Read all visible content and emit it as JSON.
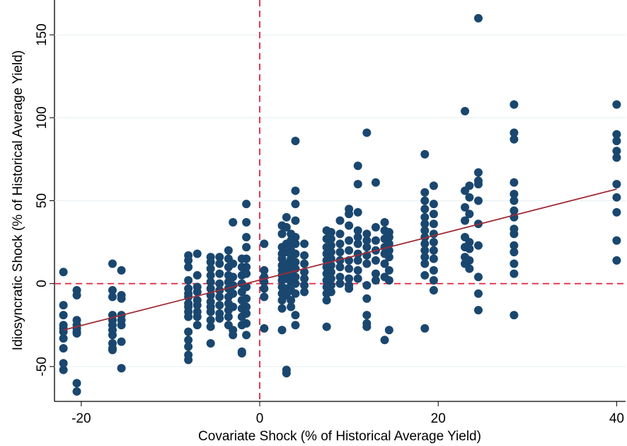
{
  "chart_data": {
    "type": "scatter",
    "x_label": "Covariate Shock (% of Historical Average Yield)",
    "y_label": "Idiosyncratic Shock (% of Historical Average Yield)",
    "xlim": [
      -23,
      41
    ],
    "ylim": [
      -71,
      171
    ],
    "xticks": [
      -20,
      0,
      20,
      40
    ],
    "yticks": [
      -50,
      0,
      50,
      100,
      150
    ],
    "grid": true,
    "reference_x": 0,
    "reference_y": 0,
    "reference_color": "#e3223c",
    "fit": {
      "color": "#a02b36",
      "x": [
        -22,
        40
      ],
      "y": [
        -28,
        57
      ]
    },
    "series": [
      {
        "color": "#1a476f",
        "x": [
          -22,
          -22,
          -22,
          -22,
          -22,
          -22,
          -22,
          -22,
          -22,
          -22,
          -20.5,
          -20.5,
          -20.5,
          -20.5,
          -20.5,
          -20.5,
          -20.5,
          -20.5,
          -20.5,
          -16.5,
          -16.5,
          -16.5,
          -16.5,
          -16.5,
          -16.5,
          -16.5,
          -16.5,
          -16.5,
          -16.5,
          -16.5,
          -15.5,
          -15.5,
          -15.5,
          -15.5,
          -15.5,
          -15.5,
          -15.5,
          -15.5,
          -8,
          -8,
          -8,
          -8,
          -8,
          -8,
          -8,
          -8,
          -8,
          -8,
          -8,
          -8,
          -8,
          -8,
          -8,
          -8,
          -7,
          -7,
          -7,
          -7,
          -7,
          -7,
          -7,
          -7,
          -7,
          -5.5,
          -5.5,
          -5.5,
          -5.5,
          -5.5,
          -5.5,
          -5.5,
          -5.5,
          -5.5,
          -5.5,
          -5.5,
          -5.5,
          -5.5,
          -4.5,
          -4.5,
          -4.5,
          -4.5,
          -4.5,
          -4.5,
          -4.5,
          -4.5,
          -4.5,
          -3.5,
          -3.5,
          -3.5,
          -3.5,
          -3.5,
          -3.5,
          -3.5,
          -3.5,
          -3.5,
          -3.5,
          -3.5,
          -3,
          -3,
          -3,
          -3,
          -3,
          -3,
          -3,
          -3,
          -2,
          -2,
          -2,
          -2,
          -2,
          -2,
          -2,
          -2,
          -2,
          -2,
          -2,
          -1.5,
          -1.5,
          -1.5,
          -1.5,
          -1.5,
          -1.5,
          -1.5,
          -1.5,
          -1.5,
          -1.5,
          -1.5,
          -1.5,
          -1.5,
          0.5,
          0.5,
          0.5,
          0.5,
          0.5,
          0.5,
          0.5,
          2.5,
          2.5,
          2.5,
          2.5,
          2.5,
          2.5,
          2.5,
          2.5,
          2.5,
          2.5,
          2.5,
          2.5,
          2.5,
          2.5,
          3,
          3,
          3,
          3,
          3,
          3,
          3,
          3,
          3,
          3,
          3,
          3.5,
          3.5,
          3.5,
          3.5,
          3.5,
          3.5,
          3.5,
          3.5,
          3.5,
          3.5,
          3.5,
          4,
          4,
          4,
          4,
          4,
          4,
          4,
          4,
          4,
          4,
          4,
          4,
          4,
          4,
          5,
          5,
          5,
          5,
          5,
          5,
          5,
          7.5,
          7.5,
          7.5,
          7.5,
          7.5,
          7.5,
          7.5,
          7.5,
          7.5,
          7.5,
          7.5,
          7.5,
          8,
          8,
          8,
          8,
          8,
          8,
          8,
          8,
          8,
          8,
          9,
          9,
          9,
          9,
          9,
          9,
          9,
          9,
          10,
          10,
          10,
          10,
          10,
          10,
          10,
          10,
          10,
          10,
          11,
          11,
          11,
          11,
          11,
          11,
          11,
          11,
          11,
          11,
          12,
          12,
          12,
          12,
          12,
          12,
          12,
          12,
          12,
          12,
          12,
          13,
          13,
          13,
          13,
          13,
          13,
          13,
          14,
          14,
          14,
          14,
          14,
          14,
          14,
          14,
          14.5,
          14.5,
          14.5,
          14.5,
          14.5,
          14.5,
          14.5,
          14.5,
          18.5,
          18.5,
          18.5,
          18.5,
          18.5,
          18.5,
          18.5,
          18.5,
          18.5,
          18.5,
          18.5,
          18.5,
          18.5,
          18.5,
          19.5,
          19.5,
          19.5,
          19.5,
          19.5,
          19.5,
          19.5,
          19.5,
          19.5,
          19.5,
          19.5,
          23,
          23,
          23,
          23,
          23,
          23,
          23,
          23,
          23.5,
          23.5,
          23.5,
          23.5,
          23.5,
          23.5,
          23.5,
          24.5,
          24.5,
          24.5,
          24.5,
          24.5,
          24.5,
          24.5,
          24.5,
          24.5,
          24.5,
          28.5,
          28.5,
          28.5,
          28.5,
          28.5,
          28.5,
          28.5,
          28.5,
          28.5,
          28.5,
          28.5,
          28.5,
          28.5,
          28.5,
          28.5,
          40,
          40,
          40,
          40,
          40,
          40,
          40,
          40,
          40,
          40
        ],
        "values": [
          7,
          -13,
          -19,
          -25,
          -27,
          -29,
          -33,
          -39,
          -48,
          -52,
          -4,
          -7,
          -22,
          -25,
          -27,
          -29,
          -30,
          -60,
          -65,
          12,
          -4,
          -8,
          -19,
          -22,
          -25,
          -28,
          -31,
          -36,
          -39,
          -40,
          8,
          -7,
          -9,
          -19,
          -22,
          -25,
          -35,
          -51,
          17,
          14,
          10,
          2,
          -3,
          -6,
          -8,
          -12,
          -14,
          -17,
          -20,
          -29,
          -34,
          -38,
          -43,
          -46,
          18,
          5,
          -2,
          -5,
          -10,
          -13,
          -17,
          -20,
          -25,
          16,
          13,
          9,
          5,
          1,
          -3,
          -7,
          -11,
          -14,
          -17,
          -22,
          -26,
          -36,
          16,
          12,
          6,
          0,
          -4,
          -8,
          -13,
          -18,
          -21,
          20,
          15,
          10,
          5,
          1,
          -3,
          -8,
          -12,
          -16,
          -20,
          -25,
          37,
          12,
          4,
          -1,
          -6,
          -14,
          -28,
          -31,
          15,
          10,
          5,
          0,
          -5,
          -10,
          -15,
          -20,
          -25,
          -41,
          -42,
          48,
          37,
          28,
          22,
          15,
          10,
          6,
          -2,
          -9,
          -14,
          -18,
          -24,
          -31,
          24,
          8,
          4,
          1,
          -3,
          -8,
          -27,
          35,
          30,
          22,
          18,
          15,
          11,
          8,
          5,
          2,
          -2,
          -6,
          -10,
          -15,
          -28,
          40,
          34,
          24,
          19,
          12,
          8,
          3,
          -3,
          -7,
          -52,
          -54,
          30,
          26,
          23,
          20,
          15,
          10,
          6,
          1,
          -4,
          -10,
          -14,
          86,
          56,
          48,
          38,
          28,
          24,
          18,
          13,
          9,
          4,
          0,
          -6,
          -19,
          -25,
          24,
          17,
          12,
          7,
          3,
          -1,
          -5,
          32,
          27,
          22,
          18,
          14,
          10,
          6,
          2,
          -2,
          -6,
          -10,
          -26,
          31,
          27,
          23,
          19,
          15,
          11,
          7,
          3,
          -1,
          -5,
          38,
          30,
          24,
          19,
          14,
          10,
          4,
          0,
          45,
          42,
          35,
          26,
          20,
          14,
          9,
          3,
          -1,
          -3,
          71,
          60,
          43,
          32,
          28,
          24,
          18,
          14,
          8,
          3,
          91,
          30,
          26,
          22,
          17,
          12,
          -1,
          -9,
          -19,
          -24,
          -26,
          61,
          34,
          26,
          20,
          14,
          6,
          2,
          37,
          32,
          27,
          22,
          18,
          12,
          4,
          -34,
          31,
          28,
          24,
          20,
          16,
          8,
          2,
          -28,
          78,
          55,
          50,
          45,
          40,
          36,
          32,
          28,
          24,
          20,
          16,
          12,
          5,
          -27,
          59,
          48,
          42,
          36,
          30,
          25,
          20,
          15,
          8,
          2,
          -4,
          104,
          56,
          46,
          38,
          28,
          22,
          16,
          12,
          59,
          52,
          42,
          25,
          21,
          14,
          9,
          160,
          67,
          62,
          60,
          50,
          36,
          23,
          4,
          -6,
          -16,
          108,
          91,
          87,
          61,
          54,
          50,
          44,
          40,
          33,
          30,
          23,
          19,
          12,
          6,
          -19,
          108,
          90,
          86,
          80,
          76,
          60,
          52,
          43,
          26,
          14
        ]
      }
    ]
  }
}
